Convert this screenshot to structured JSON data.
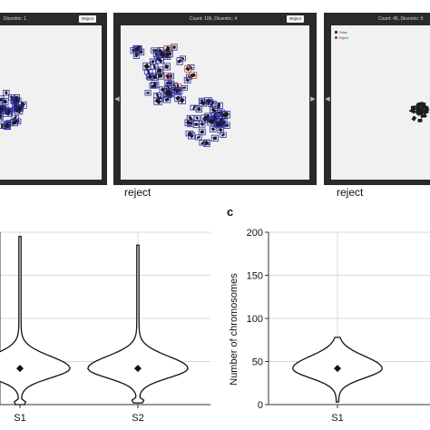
{
  "panels": [
    {
      "header": "Dicentric: 1",
      "button": "Reject",
      "caption": "",
      "has_left_arrow": false
    },
    {
      "header": "Count: 106, Dicentric: 4",
      "button": "Reject",
      "caption": "reject",
      "has_left_arrow": true
    },
    {
      "header": "Count: 45, Dicentric: 0",
      "button": "",
      "caption": "reject",
      "legend": [
        "False",
        "Reject"
      ],
      "has_left_arrow": true
    }
  ],
  "panel_letter": "c",
  "colors": {
    "box_blue": "#2a2aa6",
    "box_red": "#d0462d",
    "panel_bg": "#2a2a2a",
    "slide_bg": "#f1f1f1"
  },
  "chart_data": [
    {
      "type": "violin",
      "categories": [
        "S1",
        "S2"
      ],
      "ylim": [
        0,
        200
      ],
      "yticks": [
        0,
        50,
        100,
        150,
        200
      ],
      "tick_labels_visible": false,
      "grid": true,
      "series": [
        {
          "name": "S1",
          "median": 42,
          "max": 195,
          "min": 0
        },
        {
          "name": "S2",
          "median": 42,
          "max": 185,
          "min": 2
        }
      ]
    },
    {
      "type": "violin",
      "ylabel": "Number of chromosomes",
      "categories": [
        "S1"
      ],
      "ylim": [
        0,
        200
      ],
      "yticks": [
        0,
        50,
        100,
        150,
        200
      ],
      "grid": true,
      "series": [
        {
          "name": "S1",
          "median": 42,
          "max": 78,
          "min": 3
        }
      ]
    }
  ]
}
